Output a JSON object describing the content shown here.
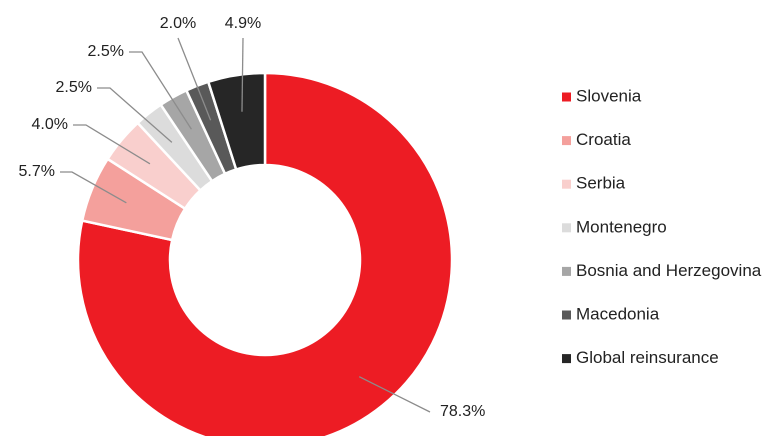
{
  "chart_data": {
    "type": "donut",
    "categories": [
      "Slovenia",
      "Croatia",
      "Serbia",
      "Montenegro",
      "Bosnia and Herzegovina",
      "Macedonia",
      "Global reinsurance"
    ],
    "values": [
      78.3,
      5.7,
      4.0,
      2.5,
      2.5,
      2.0,
      4.9
    ],
    "value_labels": [
      "78.3%",
      "5.7%",
      "4.0%",
      "2.5%",
      "2.5%",
      "2.0%",
      "4.9%"
    ],
    "colors": [
      "#ed1c24",
      "#f4a09c",
      "#f9cfcd",
      "#dcdcdc",
      "#a6a6a6",
      "#595959",
      "#262626"
    ],
    "legend": "right"
  }
}
